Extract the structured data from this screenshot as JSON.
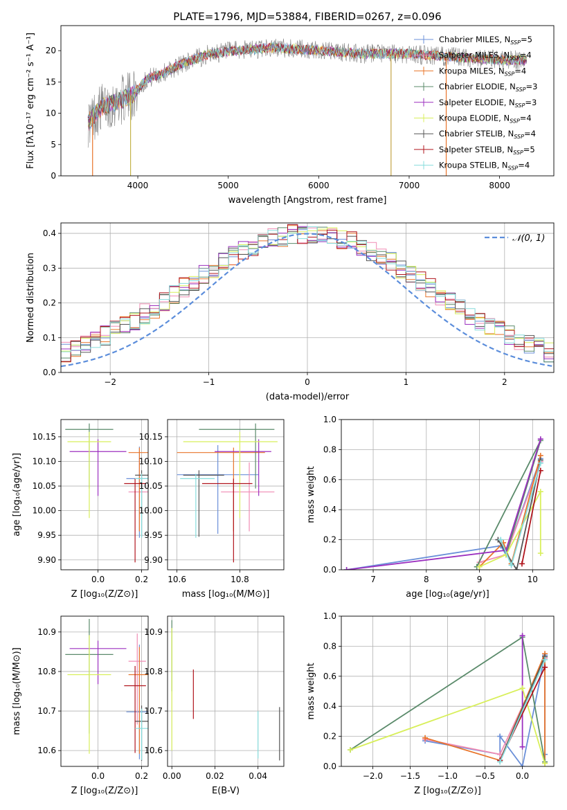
{
  "figure_title": "PLATE=1796, MJD=53884, FIBERID=0267, z=0.096",
  "legend": [
    {
      "label": "Chabrier MILES, N",
      "sub": "SSP",
      "tail": "=5",
      "color": "#6a8fd8"
    },
    {
      "label": "Salpeter MILES, N",
      "sub": "SSP",
      "tail": "=4",
      "color": "#f08cb4"
    },
    {
      "label": "Kroupa MILES, N",
      "sub": "SSP",
      "tail": "=4",
      "color": "#e8742a"
    },
    {
      "label": "Chabrier ELODIE, N",
      "sub": "SSP",
      "tail": "=3",
      "color": "#5a8a6a"
    },
    {
      "label": "Salpeter ELODIE, N",
      "sub": "SSP",
      "tail": "=3",
      "color": "#9b2fbf"
    },
    {
      "label": "Kroupa ELODIE, N",
      "sub": "SSP",
      "tail": "=4",
      "color": "#d8ef5a"
    },
    {
      "label": "Chabrier STELIB, N",
      "sub": "SSP",
      "tail": "=4",
      "color": "#555555"
    },
    {
      "label": "Salpeter STELIB, N",
      "sub": "SSP",
      "tail": "=5",
      "color": "#b0141c"
    },
    {
      "label": "Kroupa STELIB, N",
      "sub": "SSP",
      "tail": "=4",
      "color": "#86dcdc"
    }
  ],
  "chart_data": [
    {
      "id": "spectrum",
      "type": "line",
      "xlabel": "wavelength [Angstrom, rest frame]",
      "ylabel": "Flux [fλ10⁻¹⁷ erg cm⁻² s⁻¹ A⁻¹]",
      "xlim": [
        3150,
        8600
      ],
      "ylim": [
        0,
        24
      ],
      "xticks": [
        4000,
        5000,
        6000,
        7000,
        8000
      ],
      "yticks": [
        0,
        5,
        10,
        15,
        20
      ],
      "grid": false,
      "observed_color": "#808080",
      "continuum": {
        "x": [
          3450,
          3600,
          3800,
          3950,
          4100,
          4300,
          4500,
          4800,
          5100,
          5500,
          6000,
          6500,
          7000,
          7500,
          8000,
          8300
        ],
        "y": [
          8.5,
          11,
          12,
          13,
          15.5,
          16.5,
          18,
          19.5,
          20,
          20.5,
          20,
          19.5,
          19.5,
          19,
          18.5,
          18.5
        ]
      },
      "spikes_down": [
        {
          "x": 3500,
          "y": 0,
          "color": "#e8742a"
        },
        {
          "x": 3920,
          "y": 0,
          "color": "#c4b44a"
        },
        {
          "x": 6800,
          "y": 0,
          "color": "#c4a444"
        },
        {
          "x": 7410,
          "y": 0,
          "color": "#e8742a"
        }
      ]
    },
    {
      "id": "residuals",
      "type": "histogram",
      "xlabel": "(data-model)/error",
      "ylabel": "Normed distribution",
      "xlim": [
        -2.5,
        2.5
      ],
      "ylim": [
        0,
        0.43
      ],
      "xticks": [
        -2,
        -1,
        0,
        1,
        2
      ],
      "yticks": [
        0.0,
        0.1,
        0.2,
        0.3,
        0.4
      ],
      "grid": true,
      "bin_width": 0.1,
      "gaussian": {
        "label": "𝒩(0, 1)",
        "color": "#5b8ddb",
        "mu": 0,
        "sigma": 1
      }
    },
    {
      "id": "age_vs_Z",
      "type": "errorbar",
      "xlabel": "Z [log₁₀(Z/Z⊙)]",
      "ylabel": "age  [log₁₀(age/yr)]",
      "xlim": [
        -0.17,
        0.23
      ],
      "ylim": [
        9.88,
        10.185
      ],
      "xticks": [
        0.0,
        0.2
      ],
      "yticks": [
        9.9,
        9.95,
        10.0,
        10.05,
        10.1,
        10.15
      ],
      "grid": true,
      "points": [
        {
          "x": 0.19,
          "y": 10.065,
          "xerr": 0.06,
          "yerr": [
            0.12,
            0.065
          ],
          "color": "#6a8fd8"
        },
        {
          "x": 0.19,
          "y": 10.038,
          "xerr": 0.05,
          "yerr": [
            0.08,
            0.07
          ],
          "color": "#f08cb4"
        },
        {
          "x": 0.19,
          "y": 10.118,
          "xerr": 0.05,
          "yerr": [
            0.16,
            0.01
          ],
          "color": "#e8742a"
        },
        {
          "x": -0.04,
          "y": 10.165,
          "xerr": 0.11,
          "yerr": [
            0.12,
            0.012
          ],
          "color": "#5a8a6a"
        },
        {
          "x": -0.0,
          "y": 10.12,
          "xerr": 0.13,
          "yerr": [
            0.09,
            0.025
          ],
          "color": "#9b2fbf"
        },
        {
          "x": -0.04,
          "y": 10.14,
          "xerr": 0.1,
          "yerr": [
            0.155,
            0.02
          ],
          "color": "#d8ef5a"
        },
        {
          "x": 0.2,
          "y": 10.072,
          "xerr": 0.03,
          "yerr": [
            0.125,
            0.01
          ],
          "color": "#555555"
        },
        {
          "x": 0.17,
          "y": 10.055,
          "xerr": 0.05,
          "yerr": [
            0.16,
            0.01
          ],
          "color": "#b0141c"
        },
        {
          "x": 0.2,
          "y": 10.065,
          "xerr": 0.03,
          "yerr": [
            0.12,
            0.01
          ],
          "color": "#86dcdc"
        }
      ]
    },
    {
      "id": "age_vs_mass",
      "type": "errorbar",
      "xlabel": "mass [log₁₀(M/M⊙)]",
      "ylabel": "",
      "xlim": [
        10.57,
        10.94
      ],
      "ylim": [
        9.88,
        10.185
      ],
      "xticks": [
        10.6,
        10.8
      ],
      "yticks": [
        9.9,
        9.95,
        10.0,
        10.05,
        10.1,
        10.15
      ],
      "grid": true,
      "points": [
        {
          "x": 10.73,
          "y": 10.073,
          "xerr": [
            0.13,
            0.13
          ],
          "yerr": [
            0.12,
            0.06
          ],
          "color": "#6a8fd8"
        },
        {
          "x": 10.83,
          "y": 10.038,
          "xerr": [
            0.09,
            0.08
          ],
          "yerr": [
            0.08,
            0.06
          ],
          "color": "#f08cb4"
        },
        {
          "x": 10.78,
          "y": 10.118,
          "xerr": [
            0.18,
            0.1
          ],
          "yerr": [
            0.16,
            0.01
          ],
          "color": "#e8742a"
        },
        {
          "x": 10.85,
          "y": 10.165,
          "xerr": [
            0.18,
            0.06
          ],
          "yerr": [
            0.12,
            0.012
          ],
          "color": "#5a8a6a"
        },
        {
          "x": 10.86,
          "y": 10.12,
          "xerr": [
            0.14,
            0.04
          ],
          "yerr": [
            0.09,
            0.025
          ],
          "color": "#9b2fbf"
        },
        {
          "x": 10.8,
          "y": 10.14,
          "xerr": [
            0.18,
            0.12
          ],
          "yerr": [
            0.155,
            0.02
          ],
          "color": "#d8ef5a"
        },
        {
          "x": 10.67,
          "y": 10.072,
          "xerr": [
            0.05,
            0.08
          ],
          "yerr": [
            0.125,
            0.01
          ],
          "color": "#555555"
        },
        {
          "x": 10.78,
          "y": 10.055,
          "xerr": [
            0.1,
            0.06
          ],
          "yerr": [
            0.16,
            0.01
          ],
          "color": "#b0141c"
        },
        {
          "x": 10.66,
          "y": 10.065,
          "xerr": [
            0.05,
            0.06
          ],
          "yerr": [
            0.12,
            0.01
          ],
          "color": "#86dcdc"
        }
      ]
    },
    {
      "id": "weight_vs_age",
      "type": "line",
      "xlabel": "age  [log₁₀(age/yr)]",
      "ylabel": "mass weight",
      "xlim": [
        6.4,
        10.4
      ],
      "ylim": [
        0,
        1
      ],
      "xticks": [
        7,
        8,
        9,
        10
      ],
      "yticks": [
        0.0,
        0.2,
        0.4,
        0.6,
        0.8,
        1.0
      ],
      "grid": true,
      "series": [
        {
          "color": "#6a8fd8",
          "x": [
            6.5,
            9.4,
            9.5,
            10.15
          ],
          "y": [
            0.0,
            0.16,
            0.1,
            0.74
          ]
        },
        {
          "color": "#f08cb4",
          "x": [
            9.0,
            9.5,
            10.15
          ],
          "y": [
            0.05,
            0.1,
            0.72
          ]
        },
        {
          "color": "#e8742a",
          "x": [
            9.0,
            9.45,
            9.6,
            10.15
          ],
          "y": [
            0.02,
            0.18,
            0.04,
            0.76
          ]
        },
        {
          "color": "#5a8a6a",
          "x": [
            8.95,
            10.15,
            9.5
          ],
          "y": [
            0.02,
            0.86,
            0.1
          ]
        },
        {
          "color": "#9b2fbf",
          "x": [
            6.5,
            9.5,
            10.15
          ],
          "y": [
            0.0,
            0.13,
            0.87
          ]
        },
        {
          "color": "#d8ef5a",
          "x": [
            9.0,
            9.5,
            10.15,
            10.15
          ],
          "y": [
            0.02,
            0.1,
            0.52,
            0.11
          ]
        },
        {
          "color": "#555555",
          "x": [
            9.35,
            9.7,
            10.15
          ],
          "y": [
            0.2,
            0.0,
            0.73
          ]
        },
        {
          "color": "#b0141c",
          "x": [
            9.8,
            10.15
          ],
          "y": [
            0.04,
            0.66
          ]
        },
        {
          "color": "#86dcdc",
          "x": [
            9.4,
            9.6,
            10.15
          ],
          "y": [
            0.2,
            0.03,
            0.71
          ]
        }
      ]
    },
    {
      "id": "mass_vs_Z",
      "type": "errorbar",
      "xlabel": "Z [log₁₀(Z/Z⊙)]",
      "ylabel": "mass [log₁₀(M/M⊙)]",
      "xlim": [
        -0.17,
        0.23
      ],
      "ylim": [
        10.56,
        10.94
      ],
      "xticks": [
        0.0,
        0.2
      ],
      "yticks": [
        10.6,
        10.7,
        10.8,
        10.9
      ],
      "grid": true,
      "points": [
        {
          "x": 0.19,
          "y": 10.698,
          "xerr": 0.06,
          "yerr": [
            0.12,
            0.17
          ],
          "color": "#6a8fd8"
        },
        {
          "x": 0.18,
          "y": 10.826,
          "xerr": 0.04,
          "yerr": [
            0.16,
            0.07
          ],
          "color": "#f08cb4"
        },
        {
          "x": 0.19,
          "y": 10.792,
          "xerr": 0.05,
          "yerr": [
            0.2,
            0.07
          ],
          "color": "#e8742a"
        },
        {
          "x": -0.04,
          "y": 10.843,
          "xerr": 0.11,
          "yerr": [
            0.2,
            0.09
          ],
          "color": "#5a8a6a"
        },
        {
          "x": -0.0,
          "y": 10.858,
          "xerr": 0.13,
          "yerr": [
            0.09,
            0.02
          ],
          "color": "#9b2fbf"
        },
        {
          "x": -0.04,
          "y": 10.792,
          "xerr": 0.1,
          "yerr": [
            0.2,
            0.1
          ],
          "color": "#d8ef5a"
        },
        {
          "x": 0.2,
          "y": 10.674,
          "xerr": 0.03,
          "yerr": [
            0.1,
            0.04
          ],
          "color": "#555555"
        },
        {
          "x": 0.17,
          "y": 10.764,
          "xerr": 0.05,
          "yerr": [
            0.17,
            0.05
          ],
          "color": "#b0141c"
        },
        {
          "x": 0.2,
          "y": 10.656,
          "xerr": 0.03,
          "yerr": [
            0.08,
            0.05
          ],
          "color": "#86dcdc"
        }
      ]
    },
    {
      "id": "mass_vs_ebv",
      "type": "errorbar",
      "xlabel": "E(B-V)",
      "ylabel": "",
      "xlim": [
        -0.002,
        0.052
      ],
      "ylim": [
        10.56,
        10.94
      ],
      "xticks": [
        0.0,
        0.02,
        0.04
      ],
      "yticks": [
        10.6,
        10.7,
        10.8,
        10.9
      ],
      "grid": true,
      "points": [
        {
          "x": 0.0,
          "y": 10.87,
          "xerr": 0,
          "yerr": [
            0.12,
            0.06
          ],
          "color": "#5a8a6a"
        },
        {
          "x": 0.0,
          "y": 10.8,
          "xerr": 0,
          "yerr": [
            0.2,
            0.11
          ],
          "color": "#d8ef5a"
        },
        {
          "x": 0.01,
          "y": 10.74,
          "xerr": 0,
          "yerr": [
            0.06,
            0.065
          ],
          "color": "#b0141c"
        },
        {
          "x": 0.04,
          "y": 10.65,
          "xerr": 0,
          "yerr": [
            0.07,
            0.05
          ],
          "color": "#86dcdc"
        },
        {
          "x": 0.05,
          "y": 10.645,
          "xerr": 0,
          "yerr": [
            0.07,
            0.065
          ],
          "color": "#555555"
        }
      ]
    },
    {
      "id": "weight_vs_Z",
      "type": "line",
      "xlabel": "Z [log₁₀(Z/Z⊙)]",
      "ylabel": "mass weight",
      "xlim": [
        -2.42,
        0.42
      ],
      "ylim": [
        0,
        1
      ],
      "xticks": [
        -2.0,
        -1.5,
        -1.0,
        -0.5,
        0.0
      ],
      "yticks": [
        0.0,
        0.2,
        0.4,
        0.6,
        0.8,
        1.0
      ],
      "grid": true,
      "series": [
        {
          "color": "#6a8fd8",
          "x": [
            -1.3,
            -0.3,
            -0.3,
            0.0,
            0.3,
            0.3
          ],
          "y": [
            0.17,
            0.08,
            0.2,
            0.0,
            0.74,
            0.08
          ]
        },
        {
          "color": "#f08cb4",
          "x": [
            -1.3,
            -0.3,
            0.3
          ],
          "y": [
            0.18,
            0.08,
            0.72
          ]
        },
        {
          "color": "#e8742a",
          "x": [
            -1.3,
            -0.3,
            0.3,
            0.3
          ],
          "y": [
            0.19,
            0.04,
            0.75,
            0.02
          ]
        },
        {
          "color": "#5a8a6a",
          "x": [
            -2.3,
            0.0,
            0.3
          ],
          "y": [
            0.11,
            0.86,
            0.03
          ]
        },
        {
          "color": "#9b2fbf",
          "x": [
            0.0,
            0.0
          ],
          "y": [
            0.87,
            0.13
          ]
        },
        {
          "color": "#d8ef5a",
          "x": [
            -2.3,
            0.0,
            0.3
          ],
          "y": [
            0.11,
            0.52,
            0.02
          ]
        },
        {
          "color": "#555555",
          "x": [
            -0.3,
            0.3
          ],
          "y": [
            0.04,
            0.73
          ]
        },
        {
          "color": "#b0141c",
          "x": [
            -0.3,
            0.3
          ],
          "y": [
            0.04,
            0.66
          ]
        },
        {
          "color": "#86dcdc",
          "x": [
            -0.3,
            0.3
          ],
          "y": [
            0.03,
            0.71
          ]
        }
      ]
    }
  ]
}
